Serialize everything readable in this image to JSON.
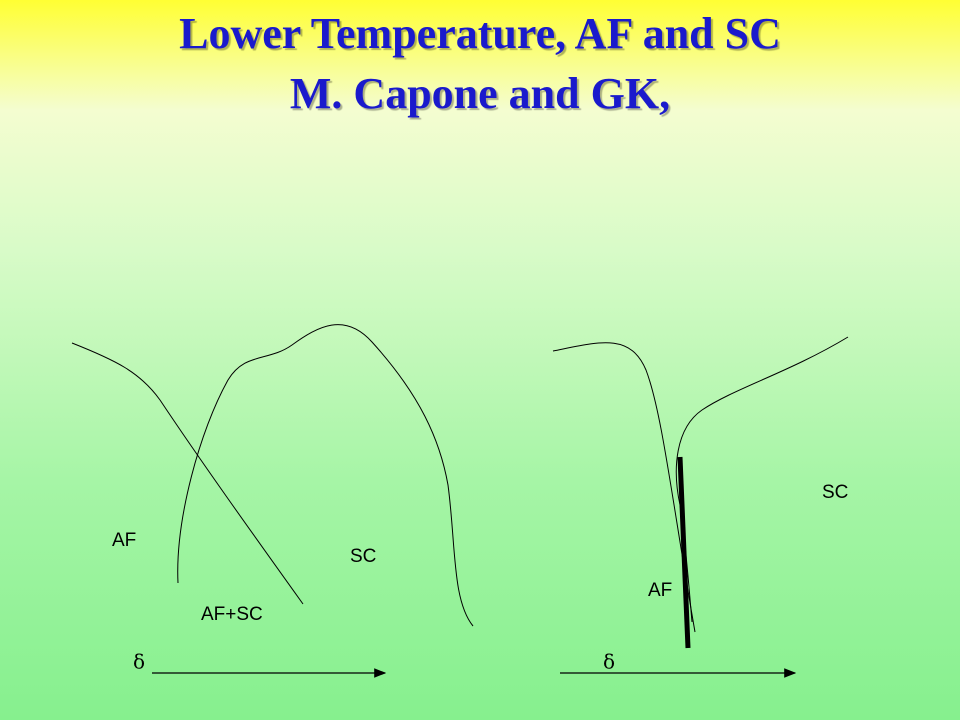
{
  "title": {
    "line1": "Lower Temperature,  AF and SC",
    "line2": "M. Capone and GK,"
  },
  "left_panel": {
    "af": "AF",
    "sc": "SC",
    "af_sc": "AF+SC",
    "axis": "δ"
  },
  "right_panel": {
    "sc": "SC",
    "af": "AF",
    "axis": "δ"
  }
}
